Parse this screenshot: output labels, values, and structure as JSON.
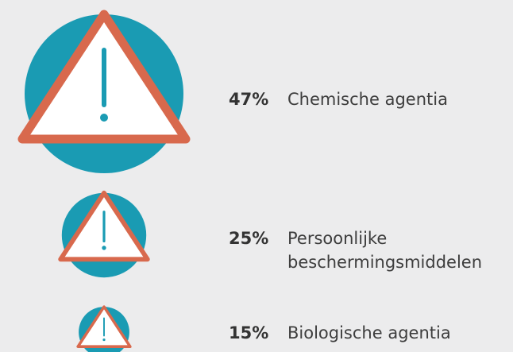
{
  "chart_data": {
    "type": "pictorial",
    "categories": [
      "Chemische agentia",
      "Persoonlijke beschermingsmiddelen",
      "Biologische agentia"
    ],
    "values": [
      47,
      25,
      15
    ],
    "value_labels": [
      "47%",
      "25%",
      "15%"
    ],
    "circle_color": "#1a9bb3",
    "triangle_color": "#d8694d"
  }
}
